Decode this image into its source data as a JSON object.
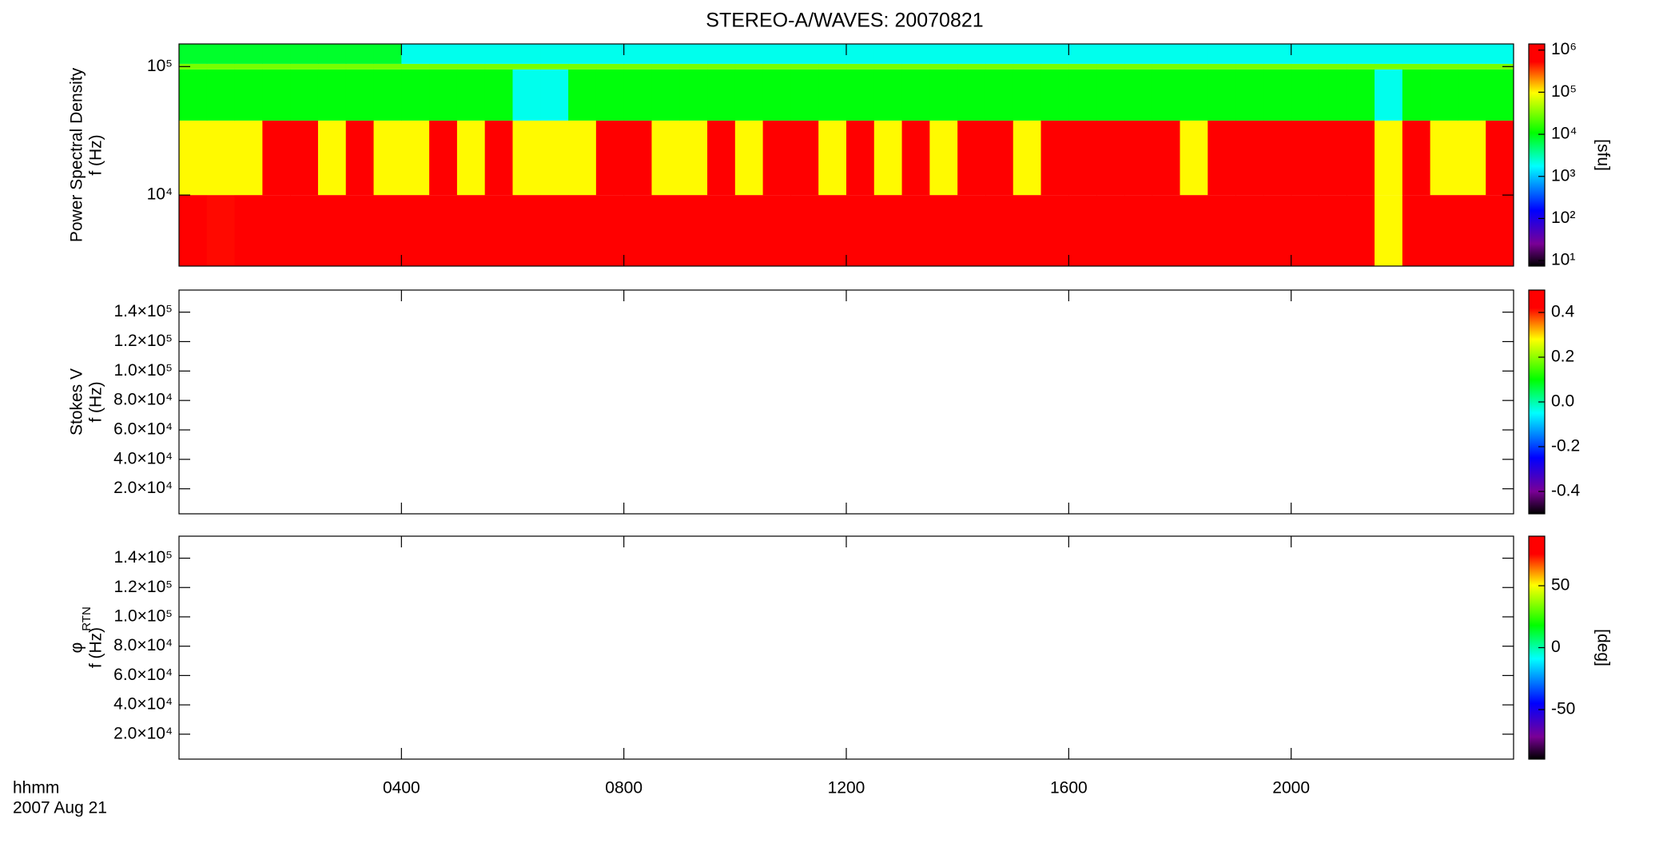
{
  "chart_data": [
    {
      "type": "heatmap",
      "title": "STEREO-A/WAVES: 20070821",
      "ylabel": [
        "Power Spectral Density",
        "f (Hz)"
      ],
      "xlim": [
        0,
        24
      ],
      "yscale": "log",
      "ylim": [
        2800,
        150000
      ],
      "yticks": [
        {
          "value": 10000,
          "label": "10⁴"
        },
        {
          "value": 100000,
          "label": "10⁵"
        }
      ],
      "x_edges": [
        0,
        0.5,
        1,
        1.5,
        2,
        2.5,
        3,
        3.5,
        4,
        4.5,
        5,
        5.5,
        6,
        6.5,
        7,
        7.5,
        8,
        8.5,
        9,
        9.5,
        10,
        10.5,
        11,
        11.5,
        12,
        12.5,
        13,
        13.5,
        14,
        14.5,
        15,
        15.5,
        16,
        16.5,
        17,
        17.5,
        18,
        18.5,
        19,
        19.5,
        20,
        20.5,
        21,
        21.5,
        22,
        22.5,
        23,
        23.5,
        24
      ],
      "y_edges": [
        2800,
        10000,
        38000,
        95000,
        105000,
        150000
      ],
      "z": [
        [
          1000000,
          500000,
          1000000,
          1000000,
          1000000,
          1000000,
          1000000,
          1000000,
          1000000,
          1000000,
          1000000,
          1000000,
          1000000,
          1000000,
          1000000,
          1000000,
          1000000,
          1000000,
          1000000,
          1000000,
          1000000,
          1000000,
          1000000,
          1000000,
          1000000,
          1000000,
          1000000,
          1000000,
          1000000,
          1000000,
          1000000,
          1000000,
          1000000,
          1000000,
          1000000,
          1000000,
          1000000,
          1000000,
          1000000,
          1000000,
          1000000,
          1000000,
          1000000,
          100000,
          1000000,
          1000000,
          1000000,
          1000000
        ],
        [
          100000,
          100000,
          100000,
          1000000,
          1000000,
          100000,
          1000000,
          100000,
          100000,
          1000000,
          100000,
          1000000,
          100000,
          100000,
          100000,
          1000000,
          1000000,
          100000,
          100000,
          1000000,
          100000,
          1000000,
          1000000,
          100000,
          1000000,
          100000,
          1000000,
          100000,
          1000000,
          1000000,
          100000,
          1000000,
          1000000,
          1000000,
          1000000,
          1000000,
          100000,
          1000000,
          1000000,
          1000000,
          1000000,
          1000000,
          1000000,
          100000,
          1000000,
          100000,
          100000,
          1000000
        ],
        [
          10000,
          10000,
          10000,
          10000,
          10000,
          10000,
          10000,
          10000,
          10000,
          10000,
          10000,
          10000,
          2000,
          2000,
          10000,
          10000,
          10000,
          10000,
          10000,
          10000,
          10000,
          10000,
          10000,
          10000,
          10000,
          10000,
          10000,
          10000,
          10000,
          10000,
          10000,
          10000,
          10000,
          10000,
          10000,
          10000,
          10000,
          10000,
          10000,
          10000,
          10000,
          10000,
          10000,
          2000,
          10000,
          10000,
          10000,
          10000
        ],
        [
          30000,
          30000,
          30000,
          30000,
          30000,
          30000,
          30000,
          30000,
          30000,
          30000,
          30000,
          30000,
          30000,
          30000,
          30000,
          30000,
          30000,
          30000,
          30000,
          30000,
          30000,
          30000,
          30000,
          30000,
          30000,
          30000,
          30000,
          30000,
          30000,
          30000,
          30000,
          30000,
          30000,
          30000,
          30000,
          30000,
          30000,
          30000,
          30000,
          30000,
          30000,
          30000,
          30000,
          30000,
          30000,
          30000,
          30000,
          30000
        ],
        [
          8000,
          8000,
          8000,
          8000,
          8000,
          8000,
          8000,
          8000,
          2000,
          2000,
          2000,
          2000,
          2000,
          2000,
          2000,
          2000,
          2000,
          2000,
          2000,
          2000,
          2000,
          2000,
          2000,
          2000,
          2000,
          2000,
          2000,
          2000,
          2000,
          2000,
          2000,
          2000,
          2000,
          2000,
          2000,
          2000,
          2000,
          2000,
          2000,
          2000,
          2000,
          2000,
          2000,
          2000,
          2000,
          2000,
          2000,
          2000
        ]
      ],
      "colorbar": {
        "scale": "log",
        "lim": [
          7.4,
          1400000
        ],
        "label": "[sfu]",
        "ticks": [
          {
            "value": 10,
            "label": "10¹"
          },
          {
            "value": 100,
            "label": "10²"
          },
          {
            "value": 1000,
            "label": "10³"
          },
          {
            "value": 10000,
            "label": "10⁴"
          },
          {
            "value": 100000,
            "label": "10⁵"
          },
          {
            "value": 1000000,
            "label": "10⁶"
          }
        ]
      },
      "colorscale": [
        [
          0,
          "#000000"
        ],
        [
          0.1,
          "#7a0096"
        ],
        [
          0.25,
          "#0000ff"
        ],
        [
          0.45,
          "#00ffff"
        ],
        [
          0.6,
          "#00ff00"
        ],
        [
          0.78,
          "#ffff00"
        ],
        [
          0.92,
          "#ff0000"
        ],
        [
          1,
          "#ff0000"
        ]
      ]
    },
    {
      "type": "heatmap",
      "ylabel": [
        "Stokes V",
        "f (Hz)"
      ],
      "xlim": [
        0,
        24
      ],
      "yscale": "linear",
      "ylim": [
        3000,
        155000
      ],
      "yticks": [
        {
          "value": 20000,
          "label": "2.0×10⁴"
        },
        {
          "value": 40000,
          "label": "4.0×10⁴"
        },
        {
          "value": 60000,
          "label": "6.0×10⁴"
        },
        {
          "value": 80000,
          "label": "8.0×10⁴"
        },
        {
          "value": 100000,
          "label": "1.0×10⁵"
        },
        {
          "value": 120000,
          "label": "1.2×10⁵"
        },
        {
          "value": 140000,
          "label": "1.4×10⁵"
        }
      ],
      "colorbar": {
        "scale": "linear",
        "lim": [
          -0.5,
          0.5
        ],
        "ticks": [
          -0.4,
          -0.2,
          {
            "value": 0,
            "label": "0.0"
          },
          0.2,
          0.4
        ]
      }
    },
    {
      "type": "heatmap",
      "ylabel": [
        "φ",
        "f (Hz)"
      ],
      "ylabel_sub": "RTN",
      "xlim": [
        0,
        24
      ],
      "yscale": "linear",
      "ylim": [
        3000,
        155000
      ],
      "yticks": [
        {
          "value": 20000,
          "label": "2.0×10⁴"
        },
        {
          "value": 40000,
          "label": "4.0×10⁴"
        },
        {
          "value": 60000,
          "label": "6.0×10⁴"
        },
        {
          "value": 80000,
          "label": "8.0×10⁴"
        },
        {
          "value": 100000,
          "label": "1.0×10⁵"
        },
        {
          "value": 120000,
          "label": "1.2×10⁵"
        },
        {
          "value": 140000,
          "label": "1.4×10⁵"
        }
      ],
      "xticks": [
        {
          "value": 4,
          "label": "0400"
        },
        {
          "value": 8,
          "label": "0800"
        },
        {
          "value": 12,
          "label": "1200"
        },
        {
          "value": 16,
          "label": "1600"
        },
        {
          "value": 20,
          "label": "2000"
        }
      ],
      "xlabel": "hhmm",
      "x_date": "2007 Aug 21",
      "colorbar": {
        "scale": "linear",
        "lim": [
          -90,
          90
        ],
        "label": "[deg]",
        "ticks": [
          -50,
          0,
          50
        ]
      }
    }
  ]
}
